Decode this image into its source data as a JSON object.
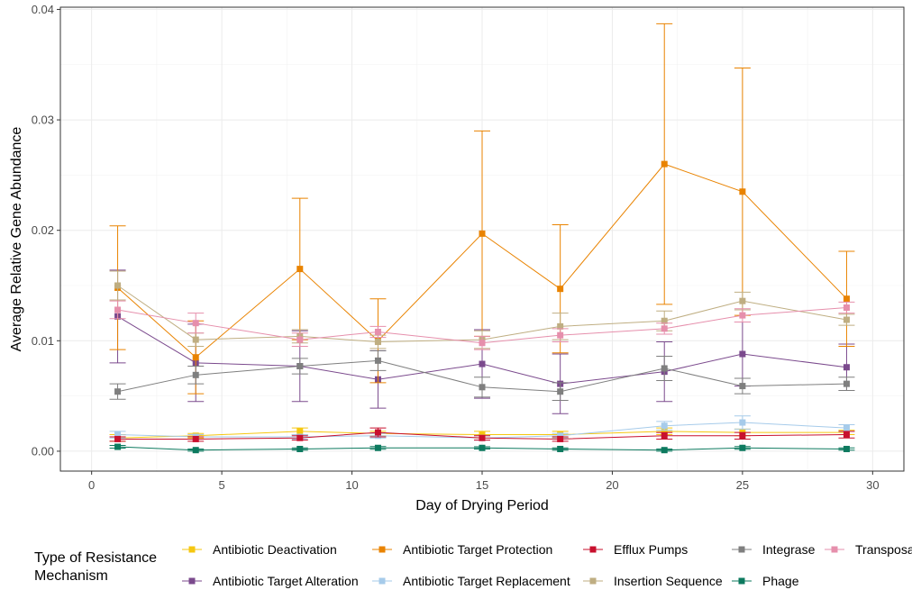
{
  "chart_data": {
    "type": "line",
    "xlabel": "Day of Drying Period",
    "ylabel": "Average Relative Gene Abundance",
    "xlim": [
      -1.2,
      31.2
    ],
    "ylim": [
      -0.0018,
      0.0402
    ],
    "x_ticks": [
      0,
      5,
      10,
      15,
      20,
      25,
      30
    ],
    "y_ticks": [
      0.0,
      0.01,
      0.02,
      0.03,
      0.04
    ],
    "y_tick_labels": [
      "0.00",
      "0.01",
      "0.02",
      "0.03",
      "0.04"
    ],
    "grid": true,
    "legend_position": "bottom",
    "legend_title": "Type of Resistance Mechanism",
    "series": [
      {
        "name": "Antibiotic Deactivation",
        "color": "#F5C710",
        "x": [
          1,
          4,
          8,
          11,
          15,
          18,
          22,
          25,
          29
        ],
        "y": [
          0.0012,
          0.0014,
          0.0018,
          0.0016,
          0.0015,
          0.0015,
          0.0018,
          0.0017,
          0.0017
        ],
        "err": [
          0.0003,
          0.0002,
          0.0003,
          0.0002,
          0.0003,
          0.0003,
          0.0003,
          0.0003,
          0.0002
        ]
      },
      {
        "name": "Antibiotic Target Alteration",
        "color": "#7B4A8D",
        "x": [
          1,
          4,
          8,
          11,
          15,
          18,
          22,
          25,
          29
        ],
        "y": [
          0.0122,
          0.008,
          0.0077,
          0.0065,
          0.0079,
          0.0061,
          0.0072,
          0.0088,
          0.0076
        ],
        "err": [
          0.0042,
          0.0035,
          0.0032,
          0.0026,
          0.0031,
          0.0027,
          0.0027,
          0.0029,
          0.0021
        ]
      },
      {
        "name": "Antibiotic Target Protection",
        "color": "#E98300",
        "x": [
          1,
          4,
          8,
          11,
          15,
          18,
          22,
          25,
          29
        ],
        "y": [
          0.0148,
          0.0085,
          0.0165,
          0.01,
          0.0197,
          0.0147,
          0.026,
          0.0235,
          0.0138
        ],
        "err": [
          0.0056,
          0.0033,
          0.0064,
          0.0038,
          0.0093,
          0.0058,
          0.0127,
          0.0112,
          0.0043
        ]
      },
      {
        "name": "Antibiotic Target Replacement",
        "color": "#A6CBEA",
        "x": [
          1,
          4,
          8,
          11,
          15,
          18,
          22,
          25,
          29
        ],
        "y": [
          0.0015,
          0.0013,
          0.0013,
          0.0014,
          0.0012,
          0.0014,
          0.0023,
          0.0026,
          0.0021
        ],
        "err": [
          0.0003,
          0.0002,
          0.0002,
          0.0002,
          0.0002,
          0.0002,
          0.0004,
          0.0006,
          0.0003
        ]
      },
      {
        "name": "Efflux Pumps",
        "color": "#C8102E",
        "x": [
          1,
          4,
          8,
          11,
          15,
          18,
          22,
          25,
          29
        ],
        "y": [
          0.0011,
          0.0011,
          0.0012,
          0.0017,
          0.0012,
          0.0011,
          0.0014,
          0.0014,
          0.0015
        ],
        "err": [
          0.0002,
          0.0002,
          0.0002,
          0.0004,
          0.0002,
          0.0002,
          0.0003,
          0.0003,
          0.0003
        ]
      },
      {
        "name": "Insertion Sequence",
        "color": "#BFAE82",
        "x": [
          1,
          4,
          8,
          11,
          15,
          18,
          22,
          25,
          29
        ],
        "y": [
          0.015,
          0.0101,
          0.0104,
          0.0099,
          0.0101,
          0.0113,
          0.0118,
          0.0136,
          0.0119
        ],
        "err": [
          0.0013,
          0.0006,
          0.0006,
          0.0006,
          0.0008,
          0.0012,
          0.0009,
          0.0008,
          0.0005
        ]
      },
      {
        "name": "Integrase",
        "color": "#7F7F7F",
        "x": [
          1,
          4,
          8,
          11,
          15,
          18,
          22,
          25,
          29
        ],
        "y": [
          0.0054,
          0.0069,
          0.0077,
          0.0082,
          0.0058,
          0.0054,
          0.0075,
          0.0059,
          0.0061
        ],
        "err": [
          0.0007,
          0.0008,
          0.0007,
          0.0009,
          0.0009,
          0.0008,
          0.0011,
          0.0007,
          0.0006
        ]
      },
      {
        "name": "Phage",
        "color": "#0D7A5F",
        "x": [
          1,
          4,
          8,
          11,
          15,
          18,
          22,
          25,
          29
        ],
        "y": [
          0.0004,
          0.0001,
          0.0002,
          0.0003,
          0.0003,
          0.0002,
          0.0001,
          0.0003,
          0.0002
        ],
        "err": [
          0.00012,
          0.0001,
          0.0001,
          0.00012,
          0.0001,
          0.0001,
          0.0001,
          0.00012,
          0.0001
        ]
      },
      {
        "name": "Transposase",
        "color": "#E68FAC",
        "x": [
          1,
          4,
          8,
          11,
          15,
          18,
          22,
          25,
          29
        ],
        "y": [
          0.0128,
          0.0116,
          0.0101,
          0.0108,
          0.0098,
          0.0105,
          0.0111,
          0.0123,
          0.013
        ],
        "err": [
          0.0008,
          0.0009,
          0.0006,
          0.0005,
          0.0006,
          0.0006,
          0.0005,
          0.0006,
          0.0005
        ]
      }
    ]
  }
}
